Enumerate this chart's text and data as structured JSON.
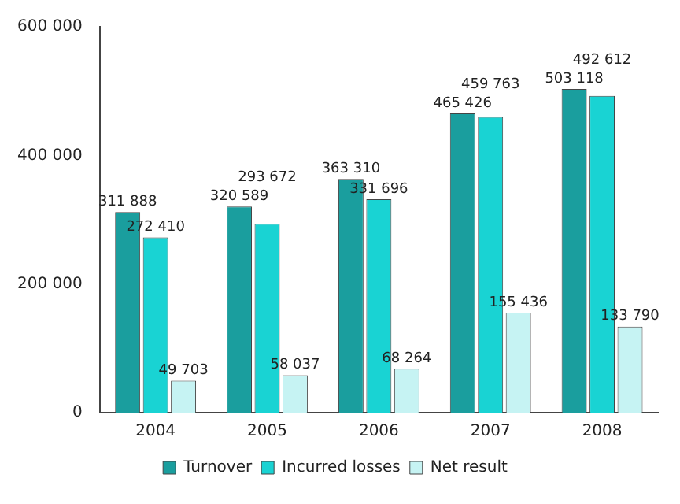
{
  "chart_data": {
    "type": "bar",
    "categories": [
      "2004",
      "2005",
      "2006",
      "2007",
      "2008"
    ],
    "series": [
      {
        "name": "Turnover",
        "color": "#1a9e9e",
        "values": [
          311888,
          320589,
          363310,
          465426,
          503118
        ],
        "value_labels": [
          "311 888",
          "320 589",
          "363 310",
          "465 426",
          "503 118"
        ]
      },
      {
        "name": "Incurred losses",
        "color": "#19d3d3",
        "values": [
          272410,
          293672,
          331696,
          459763,
          492612
        ],
        "value_labels": [
          "272 410",
          "293 672",
          "331 696",
          "459 763",
          "492 612"
        ]
      },
      {
        "name": "Net result",
        "color": "#c6f3f3",
        "values": [
          49703,
          58037,
          68264,
          155436,
          133790
        ],
        "value_labels": [
          "49 703",
          "58 037",
          "68 264",
          "155 436",
          "133 790"
        ]
      }
    ],
    "ylim": [
      0,
      600000
    ],
    "yticks": [
      {
        "value": 0,
        "label": "0"
      },
      {
        "value": 200000,
        "label": "200 000"
      },
      {
        "value": 400000,
        "label": "400 000"
      },
      {
        "value": 600000,
        "label": "600 000"
      }
    ],
    "grid": false,
    "legend": "bottom"
  }
}
